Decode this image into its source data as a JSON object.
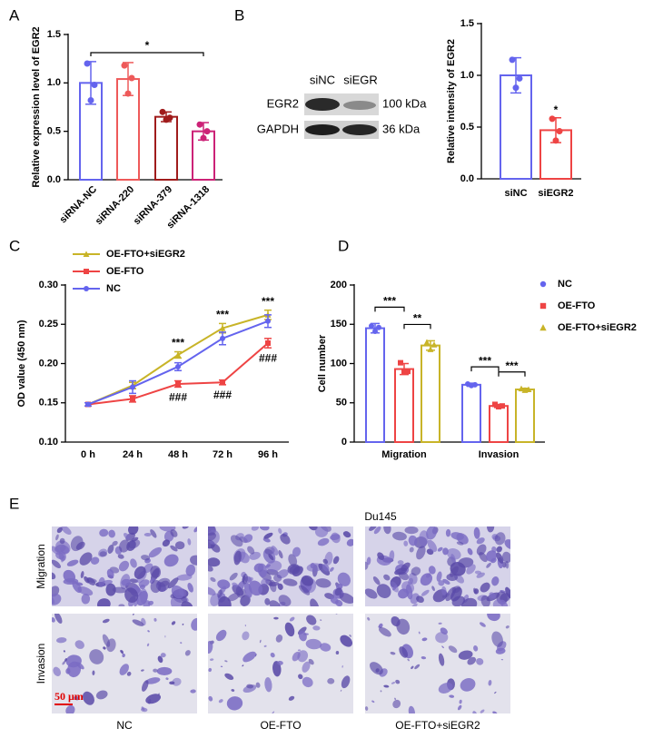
{
  "chart_data": [
    {
      "panel": "A",
      "type": "bar",
      "ylabel": "Relative expression level of EGR2",
      "categories": [
        "siRNA-NC",
        "siRNA-220",
        "siRNA-379",
        "siRNA-1318"
      ],
      "values": [
        1.0,
        1.04,
        0.65,
        0.5
      ],
      "errors": [
        0.22,
        0.17,
        0.05,
        0.09
      ],
      "points": [
        [
          1.2,
          0.98,
          0.82
        ],
        [
          1.18,
          1.05,
          0.89
        ],
        [
          0.7,
          0.64,
          0.62
        ],
        [
          0.57,
          0.5,
          0.43
        ]
      ],
      "colors": [
        "#6464ee",
        "#ee5a5a",
        "#a01c1c",
        "#cc2277"
      ],
      "ylim": [
        0,
        1.5
      ],
      "yticks": [
        {
          "value": 0,
          "label": "0.0"
        },
        0.5,
        {
          "value": 1,
          "label": "1.0"
        },
        1.5
      ],
      "significance": "*"
    },
    {
      "type": "bar",
      "ylabel": "Relative intensity of EGR2",
      "categories": [
        "siNC",
        "siEGR2"
      ],
      "values": [
        1.0,
        0.47
      ],
      "errors": [
        0.17,
        0.12
      ],
      "points": [
        [
          1.15,
          0.97,
          0.88
        ],
        [
          0.58,
          0.46,
          0.37
        ]
      ],
      "colors": [
        "#6464ee",
        "#ee4444"
      ],
      "ylim": [
        0,
        1.5
      ],
      "yticks": [
        {
          "value": 0,
          "label": "0.0"
        },
        0.5,
        {
          "value": 1,
          "label": "1.0"
        },
        1.5
      ],
      "significance": [
        null,
        "*"
      ]
    },
    {
      "panel": "C",
      "type": "line",
      "ylabel": "OD value (450 nm)",
      "categories": [
        "0 h",
        "24 h",
        "48 h",
        "72 h",
        "96 h"
      ],
      "series": [
        {
          "name": "OE-FTO+siEGR2",
          "color": "#c8b428",
          "marker": "triangle",
          "values": [
            0.148,
            0.172,
            0.211,
            0.245,
            0.262
          ],
          "errors": [
            0.002,
            0.004,
            0.004,
            0.006,
            0.006
          ],
          "labels_above": [
            null,
            null,
            "***",
            "***",
            "***"
          ]
        },
        {
          "name": "OE-FTO",
          "color": "#ee4444",
          "marker": "square",
          "values": [
            0.148,
            0.155,
            0.174,
            0.176,
            0.226
          ],
          "errors": [
            0.002,
            0.004,
            0.004,
            0.003,
            0.006
          ],
          "labels_below": [
            null,
            null,
            "###",
            "###",
            "###"
          ]
        },
        {
          "name": "NC",
          "color": "#6464ee",
          "marker": "circle",
          "values": [
            0.148,
            0.17,
            0.196,
            0.232,
            0.254
          ],
          "errors": [
            0.002,
            0.008,
            0.005,
            0.008,
            0.008
          ]
        }
      ],
      "ylim": [
        0.1,
        0.3
      ],
      "yticks": [
        {
          "value": 0.1,
          "label": "0.10"
        },
        0.15,
        {
          "value": 0.2,
          "label": "0.20"
        },
        0.25,
        {
          "value": 0.3,
          "label": "0.30"
        }
      ]
    },
    {
      "panel": "D",
      "type": "grouped-bar",
      "ylabel": "Cell number",
      "categories": [
        "Migration",
        "Invasion"
      ],
      "series": [
        {
          "name": "NC",
          "color": "#6464ee",
          "marker": "circle",
          "values": [
            145,
            73
          ],
          "errors": [
            6,
            2
          ],
          "points": [
            [
              148,
              146,
              141
            ],
            [
              74,
              73,
              72
            ]
          ]
        },
        {
          "name": "OE-FTO",
          "color": "#ee4444",
          "marker": "square",
          "values": [
            93,
            46
          ],
          "errors": [
            7,
            2
          ],
          "points": [
            [
              101,
              90,
              89
            ],
            [
              48,
              46,
              45
            ]
          ]
        },
        {
          "name": "OE-FTO+siEGR2",
          "color": "#c8b428",
          "marker": "triangle",
          "values": [
            123,
            67
          ],
          "errors": [
            6,
            1.5
          ],
          "points": [
            [
              127,
              124,
              118
            ],
            [
              68,
              67,
              66
            ]
          ]
        }
      ],
      "ylim": [
        0,
        200
      ],
      "yticks": [
        0,
        50,
        100,
        150,
        200
      ],
      "significance": [
        [
          "***",
          "**"
        ],
        [
          "***",
          "***"
        ]
      ]
    }
  ],
  "blot": {
    "panel": "B",
    "lanes": [
      "siNC",
      "siEGR"
    ],
    "rows": [
      {
        "protein": "EGR2",
        "size": "100 kDa"
      },
      {
        "protein": "GAPDH",
        "size": "36 kDa"
      }
    ]
  },
  "images": {
    "panel": "E",
    "title": "Du145",
    "rows": [
      "Migration",
      "Invasion"
    ],
    "columns": [
      "NC",
      "OE-FTO",
      "OE-FTO+siEGR2"
    ],
    "scale_bar": "50 μm"
  }
}
